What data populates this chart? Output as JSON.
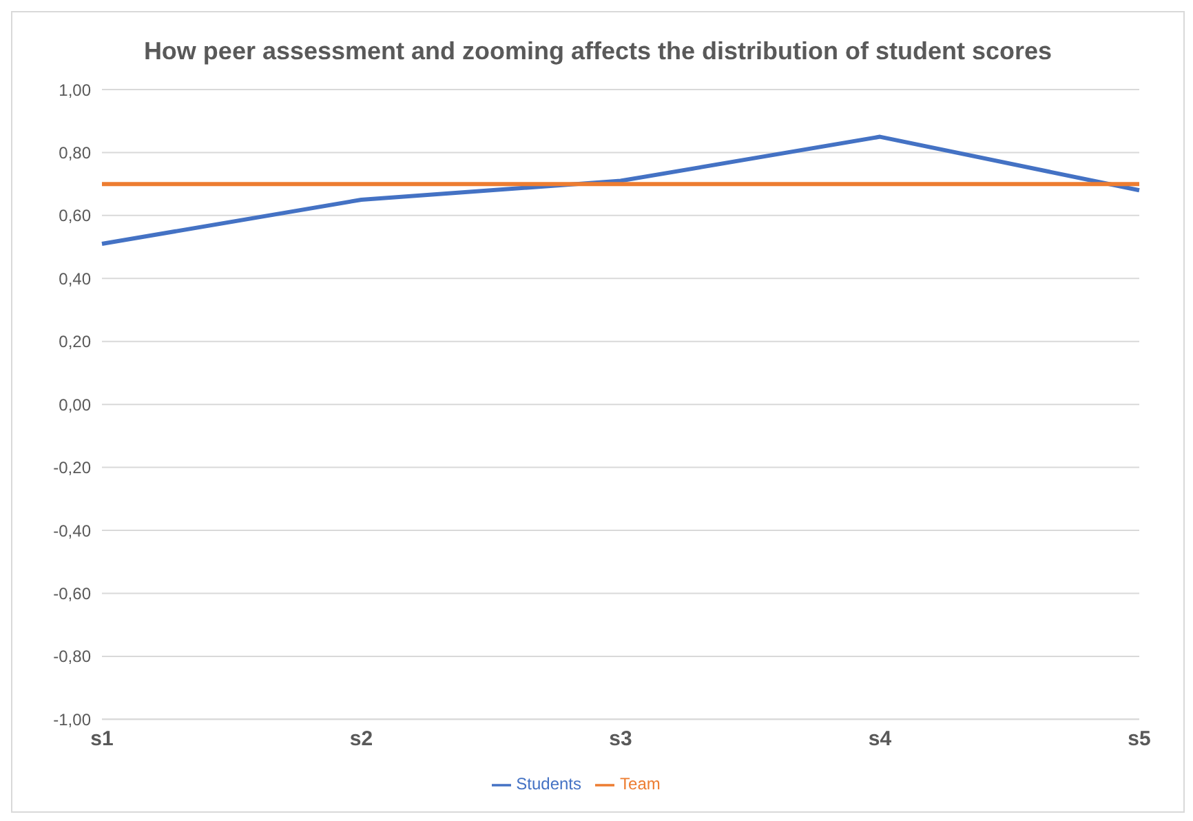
{
  "chart_data": {
    "type": "line",
    "title": "How peer assessment and zooming affects the distribution of student scores",
    "categories": [
      "s1",
      "s2",
      "s3",
      "s4",
      "s5"
    ],
    "series": [
      {
        "name": "Students",
        "color": "#4472c4",
        "values": [
          0.51,
          0.65,
          0.71,
          0.85,
          0.68
        ]
      },
      {
        "name": "Team",
        "color": "#ed7d31",
        "values": [
          0.7,
          0.7,
          0.7,
          0.7,
          0.7
        ]
      }
    ],
    "ylim": [
      -1,
      1
    ],
    "yticks": [
      {
        "value": -1,
        "label": "-1,00"
      },
      {
        "value": -0.8,
        "label": "-0,80"
      },
      {
        "value": -0.6,
        "label": "-0,60"
      },
      {
        "value": -0.4,
        "label": "-0,40"
      },
      {
        "value": -0.2,
        "label": "-0,20"
      },
      {
        "value": 0,
        "label": "0,00"
      },
      {
        "value": 0.2,
        "label": "0,20"
      },
      {
        "value": 0.4,
        "label": "0,40"
      },
      {
        "value": 0.6,
        "label": "0,60"
      },
      {
        "value": 0.8,
        "label": "0,80"
      },
      {
        "value": 1,
        "label": "1,00"
      }
    ],
    "grid": "y",
    "legend": "bottom",
    "marker": "none",
    "line_style": "solid"
  }
}
